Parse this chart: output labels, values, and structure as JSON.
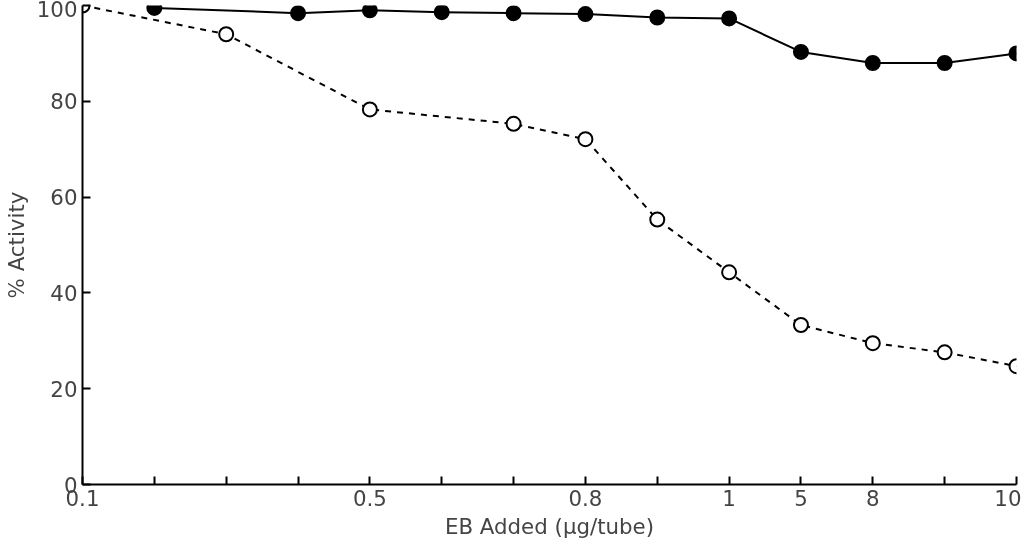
{
  "chart_data": {
    "type": "line",
    "xlabel": "EB Added (μg/tube)",
    "ylabel": "% Activity",
    "categories": [
      "0.1",
      null,
      null,
      null,
      "0.5",
      null,
      null,
      "0.8",
      null,
      "1",
      "5",
      "8",
      null,
      "10"
    ],
    "ylim": [
      0,
      100
    ],
    "yticks": [
      0,
      20,
      40,
      60,
      80,
      100
    ],
    "grid": false,
    "marker": "circle",
    "series": [
      {
        "color": "#000000",
        "line_style": "solid",
        "values": [
          null,
          99.5,
          null,
          98.4,
          99,
          98.6,
          98.4,
          98.2,
          97.5,
          97.3,
          90.3,
          88,
          88,
          90
        ]
      },
      {
        "color": "#000000",
        "line_style": "dashed",
        "values": [
          100,
          null,
          94,
          null,
          78.3,
          null,
          75.3,
          72.1,
          55.3,
          44.3,
          33.3,
          29.5,
          27.6,
          24.7
        ]
      }
    ]
  }
}
